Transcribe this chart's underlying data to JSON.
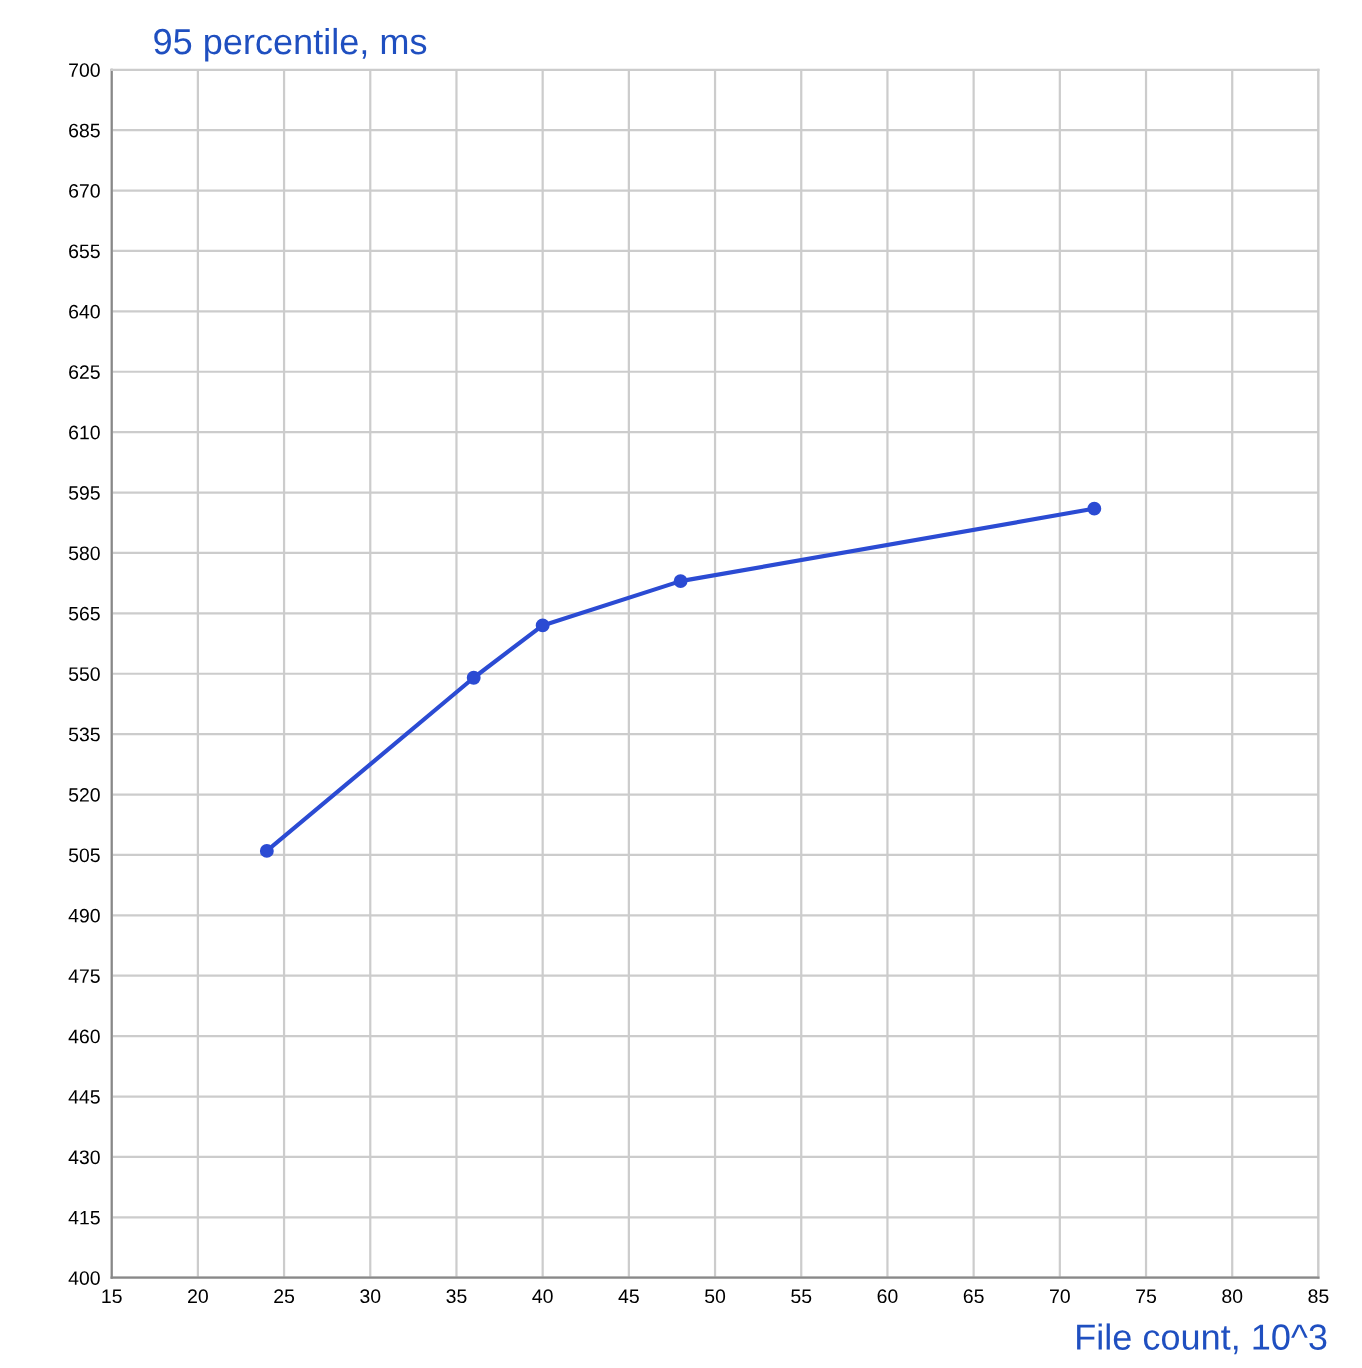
{
  "chart_data": {
    "type": "line",
    "xlabel": "File count, 10^3",
    "ylabel": "95 percentile, ms",
    "x": [
      24,
      36,
      40,
      48,
      72
    ],
    "series": [
      {
        "color": "#2b4bd3",
        "values": [
          506,
          549,
          562,
          573,
          591
        ]
      }
    ],
    "xlim": [
      15,
      85
    ],
    "xticks": [
      15,
      20,
      25,
      30,
      35,
      40,
      45,
      50,
      55,
      60,
      65,
      70,
      75,
      80,
      85
    ],
    "ylim": [
      400,
      700
    ],
    "yticks": [
      400,
      415,
      430,
      445,
      460,
      475,
      490,
      505,
      520,
      535,
      550,
      565,
      580,
      595,
      610,
      625,
      640,
      655,
      670,
      685,
      700
    ],
    "grid": true,
    "marker": "circle",
    "line_style": "solid"
  }
}
